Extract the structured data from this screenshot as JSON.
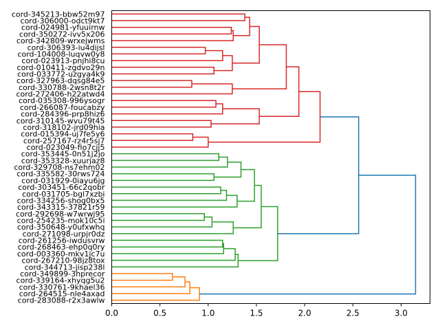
{
  "chart_data": {
    "type": "dendrogram",
    "orientation": "left",
    "title": "",
    "xlabel": "",
    "ylabel": "",
    "xlim": [
      0,
      3.3
    ],
    "xticks": [
      0.0,
      0.5,
      1.0,
      1.5,
      2.0,
      2.5,
      3.0
    ],
    "xtick_labels": [
      "0.0",
      "0.5",
      "1.0",
      "1.5",
      "2.0",
      "2.5",
      "3.0"
    ],
    "colors": {
      "red": "#d62728",
      "green": "#2ca02c",
      "orange": "#ff7f0e",
      "blue": "#1f77b4"
    },
    "leaves": [
      "cord-345213-bbw52m97",
      "cord-306000-odct9kt7",
      "cord-024981-yfuuirnw",
      "cord-350272-ivv5x206",
      "cord-342809-wrxejwms",
      "cord-306393-iu4dijsl",
      "cord-104008-luqvw0y8",
      "cord-023913-pnjhi8cu",
      "cord-010411-zgdvo29n",
      "cord-033772-uzgya4k9",
      "cord-327963-dqsg84e5",
      "cord-330788-2wsn8t2r",
      "cord-272406-h22atwd4",
      "cord-035308-996ysogr",
      "cord-266087-foucabzy",
      "cord-284396-prp8hiz6",
      "cord-310145-wvu79t45",
      "cord-318102-jrd09hia",
      "cord-015394-uj7fe5y6",
      "cord-257167-rz4r5sj7",
      "cord-023049-fio7cjj5",
      "cord-353445-0n51j2jo",
      "cord-353328-xuurjaz8",
      "cord-329708-ns7ehm02",
      "cord-335582-30rws724",
      "cord-031929-0iayu6jg",
      "cord-303451-66c2qobr",
      "cord-031705-bgl7xzbi",
      "cord-334256-shog0bx5",
      "cord-343315-37821r59",
      "cord-292698-w7wrwj95",
      "cord-254235-mok10c5i",
      "cord-350648-y0ufxwhq",
      "cord-271098-urpjr0dz",
      "cord-261256-iwdusvrw",
      "cord-268463-ehp0q0ry",
      "cord-003360-mkv1jc7u",
      "cord-267210-98jz8tox",
      "cord-344713-jisp238l",
      "cord-349899-3hprecor",
      "cord-339164-xhyqg5u2",
      "cord-330761-9khael36",
      "cord-264515-nle4axad",
      "cord-283088-r2x3awlw"
    ],
    "tree": [
      3.15,
      [
        2.56,
        [
          2.16,
          [
            1.94,
            [
              1.81,
              [
                1.53,
                [
                  1.43,
                  [
                    1.38,
                    0,
                    1
                  ],
                  [
                    1.26,
                    [
                      1.24,
                      2,
                      3
                    ],
                    4
                  ]
                ],
                [
                  1.25,
                  [
                    1.15,
                    [
                      0.97,
                      5,
                      6
                    ],
                    7
                  ],
                  [
                    1.06,
                    8,
                    9
                  ]
                ]
              ],
              [
                1.25,
                [
                  0.83,
                  10,
                  11
                ],
                12
              ]
            ],
            [
              1.53,
              [
                1.15,
                [
                  1.08,
                  13,
                  14
                ],
                15
              ],
              [
                1.03,
                16,
                17
              ]
            ]
          ],
          [
            1.0,
            [
              0.84,
              18,
              19
            ],
            20
          ],
          "red"
        ],
        [
          1.72,
          [
            1.55,
            [
              1.48,
              [
                1.34,
                [
                  1.2,
                  [
                    1.11,
                    21,
                    22
                  ],
                  23
                ],
                [
                  1.06,
                  24,
                  25
                ]
              ],
              [
                1.3,
                [
                  1.19,
                  [
                    1.13,
                    26,
                    27
                  ],
                  28
                ],
                29
              ]
            ],
            [
              1.26,
              [
                1.04,
                [
                  0.96,
                  30,
                  31
                ],
                32
              ],
              33
            ]
          ],
          [
            1.31,
            [
              1.28,
              [
                1.16,
                [
                  1.15,
                  34,
                  35
                ],
                36
              ],
              37
            ],
            38
          ],
          "green"
        ]
      ],
      [
        0.91,
        [
          0.81,
          [
            0.76,
            [
              0.63,
              39,
              40
            ],
            41
          ],
          42
        ],
        43,
        "orange"
      ]
    ]
  }
}
